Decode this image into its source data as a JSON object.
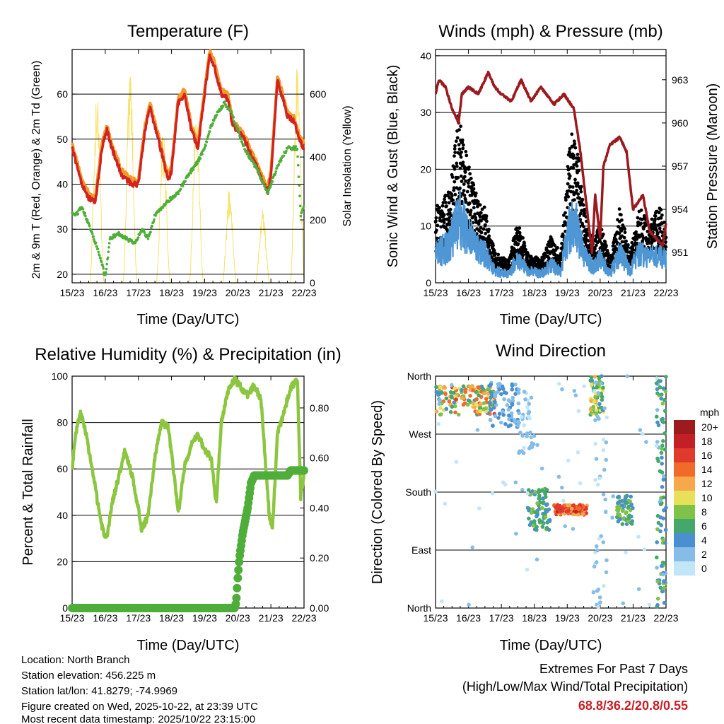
{
  "chart_data": [
    {
      "id": "temp",
      "type": "line",
      "title": "Temperature (F)",
      "xlabel": "Time (Day/UTC)",
      "ylabel": "2m & 9m T (Red, Orange) & 2m Td (Green)",
      "y2label": "Solar Insolation (Yellow)",
      "xticks": [
        "15/23",
        "16/23",
        "17/23",
        "18/23",
        "19/23",
        "20/23",
        "21/23",
        "22/23"
      ],
      "xlim": [
        0,
        7
      ],
      "ylim": [
        18.1,
        69.9
      ],
      "yticks": [
        20,
        30,
        40,
        50,
        60
      ],
      "y2lim": [
        0,
        742
      ],
      "y2ticks": [
        0,
        200,
        400,
        600
      ],
      "t2m": [
        [
          0,
          48
        ],
        [
          0.3,
          40
        ],
        [
          0.5,
          37
        ],
        [
          0.7,
          36
        ],
        [
          0.9,
          48
        ],
        [
          1.05,
          52
        ],
        [
          1.2,
          48
        ],
        [
          1.5,
          42
        ],
        [
          1.8,
          40
        ],
        [
          2.0,
          40
        ],
        [
          2.2,
          52
        ],
        [
          2.35,
          57
        ],
        [
          2.6,
          50
        ],
        [
          2.9,
          41
        ],
        [
          3.0,
          43
        ],
        [
          3.2,
          58
        ],
        [
          3.4,
          60
        ],
        [
          3.6,
          52
        ],
        [
          3.8,
          48
        ],
        [
          3.95,
          57
        ],
        [
          4.15,
          68.8
        ],
        [
          4.3,
          66
        ],
        [
          4.5,
          60
        ],
        [
          4.7,
          59
        ],
        [
          4.85,
          53
        ],
        [
          5.2,
          50
        ],
        [
          5.5,
          45
        ],
        [
          5.9,
          38
        ],
        [
          6.0,
          42
        ],
        [
          6.2,
          63
        ],
        [
          6.4,
          58
        ],
        [
          6.5,
          55
        ],
        [
          6.7,
          54
        ],
        [
          6.85,
          50
        ],
        [
          7.0,
          48
        ]
      ],
      "t9m_offset": 1.0,
      "td2m": [
        [
          0,
          34
        ],
        [
          0.1,
          33
        ],
        [
          0.3,
          35
        ],
        [
          0.5,
          31
        ],
        [
          0.8,
          25
        ],
        [
          1.0,
          19.5
        ],
        [
          1.15,
          28
        ],
        [
          1.4,
          29
        ],
        [
          1.6,
          28
        ],
        [
          1.9,
          27
        ],
        [
          2.1,
          30
        ],
        [
          2.3,
          28
        ],
        [
          2.5,
          33
        ],
        [
          3.0,
          37
        ],
        [
          3.2,
          38
        ],
        [
          3.5,
          42
        ],
        [
          3.8,
          45
        ],
        [
          4.0,
          48
        ],
        [
          4.2,
          53
        ],
        [
          4.4,
          56
        ],
        [
          4.6,
          58
        ],
        [
          4.8,
          56
        ],
        [
          5.0,
          52
        ],
        [
          5.2,
          48
        ],
        [
          5.6,
          43
        ],
        [
          5.9,
          38
        ],
        [
          6.0,
          40
        ],
        [
          6.2,
          44
        ],
        [
          6.5,
          48
        ],
        [
          6.8,
          48
        ],
        [
          6.9,
          33
        ],
        [
          7.0,
          35
        ]
      ],
      "solar_peaks": [
        [
          0.75,
          640
        ],
        [
          1.75,
          680
        ],
        [
          2.75,
          480
        ],
        [
          3.75,
          560
        ],
        [
          4.75,
          300
        ],
        [
          5.75,
          240
        ],
        [
          6.8,
          700
        ]
      ]
    },
    {
      "id": "winds",
      "type": "scatter",
      "title": "Winds (mph) & Pressure (mb)",
      "xlabel": "Time (Day/UTC)",
      "ylabel": "Sonic Wind & Gust (Blue, Black)",
      "y2label": "Station Pressure (Maroon)",
      "xticks": [
        "15/23",
        "16/23",
        "17/23",
        "18/23",
        "19/23",
        "20/23",
        "21/23",
        "22/23"
      ],
      "xlim": [
        0,
        7
      ],
      "ylim": [
        0,
        41.1
      ],
      "yticks": [
        0,
        10,
        20,
        30,
        40
      ],
      "y2lim": [
        948.9,
        965.1
      ],
      "y2ticks": [
        951,
        954,
        957,
        960,
        963
      ],
      "gust_envelope": [
        [
          0,
          10
        ],
        [
          0.4,
          12
        ],
        [
          0.7,
          22
        ],
        [
          0.9,
          18
        ],
        [
          1.2,
          12
        ],
        [
          1.5,
          10
        ],
        [
          1.8,
          4
        ],
        [
          2.2,
          3
        ],
        [
          2.5,
          8
        ],
        [
          2.8,
          4
        ],
        [
          3.2,
          3
        ],
        [
          3.5,
          6
        ],
        [
          3.8,
          4
        ],
        [
          4.1,
          20
        ],
        [
          4.3,
          18
        ],
        [
          4.5,
          10
        ],
        [
          4.8,
          5
        ],
        [
          5.0,
          8
        ],
        [
          5.3,
          3
        ],
        [
          5.6,
          10
        ],
        [
          5.9,
          4
        ],
        [
          6.2,
          10
        ],
        [
          6.5,
          8
        ],
        [
          6.8,
          10
        ],
        [
          7.0,
          8
        ]
      ],
      "sustained_ratio": 0.55,
      "max_wind": 20.8,
      "pressure": [
        [
          0,
          962
        ],
        [
          0.1,
          963
        ],
        [
          0.3,
          962.5
        ],
        [
          0.5,
          961
        ],
        [
          0.7,
          960
        ],
        [
          0.8,
          962
        ],
        [
          1.0,
          962.5
        ],
        [
          1.3,
          962
        ],
        [
          1.6,
          963.5
        ],
        [
          1.8,
          962.5
        ],
        [
          2.0,
          962
        ],
        [
          2.3,
          961.5
        ],
        [
          2.6,
          963
        ],
        [
          2.9,
          961.5
        ],
        [
          3.2,
          962.5
        ],
        [
          3.6,
          961.3
        ],
        [
          3.9,
          962
        ],
        [
          4.2,
          961
        ],
        [
          4.4,
          958
        ],
        [
          4.6,
          954
        ],
        [
          4.75,
          951
        ],
        [
          4.85,
          955
        ],
        [
          5.0,
          952
        ],
        [
          5.1,
          957
        ],
        [
          5.3,
          958.5
        ],
        [
          5.6,
          959
        ],
        [
          5.8,
          958
        ],
        [
          6.0,
          954
        ],
        [
          6.3,
          955
        ],
        [
          6.5,
          952.5
        ],
        [
          6.7,
          952
        ],
        [
          6.9,
          951.5
        ],
        [
          7.0,
          953
        ]
      ]
    },
    {
      "id": "rh",
      "type": "line",
      "title": "Relative Humidity (%) & Precipitation (in)",
      "xlabel": "Time (Day/UTC)",
      "ylabel": "Percent & Total Rainfall",
      "xticks": [
        "15/23",
        "16/23",
        "17/23",
        "18/23",
        "19/23",
        "20/23",
        "21/23",
        "22/23"
      ],
      "xlim": [
        0,
        7
      ],
      "ylim": [
        0,
        100
      ],
      "yticks": [
        0,
        20,
        40,
        60,
        80,
        100
      ],
      "y2lim": [
        0,
        0.927
      ],
      "y2ticks": [
        "0.00",
        "0.20",
        "0.40",
        "0.60",
        "0.80"
      ],
      "rh": [
        [
          0,
          60
        ],
        [
          0.1,
          75
        ],
        [
          0.25,
          84
        ],
        [
          0.4,
          77
        ],
        [
          0.6,
          60
        ],
        [
          0.9,
          35
        ],
        [
          1.05,
          29
        ],
        [
          1.2,
          45
        ],
        [
          1.5,
          62
        ],
        [
          1.6,
          68
        ],
        [
          1.85,
          55
        ],
        [
          2.1,
          34
        ],
        [
          2.3,
          40
        ],
        [
          2.5,
          65
        ],
        [
          2.7,
          80
        ],
        [
          2.9,
          78
        ],
        [
          3.1,
          55
        ],
        [
          3.2,
          40
        ],
        [
          3.4,
          62
        ],
        [
          3.6,
          70
        ],
        [
          3.8,
          75
        ],
        [
          4.0,
          68
        ],
        [
          4.2,
          65
        ],
        [
          4.35,
          45
        ],
        [
          4.5,
          80
        ],
        [
          4.7,
          93
        ],
        [
          4.9,
          99
        ],
        [
          5.1,
          95
        ],
        [
          5.3,
          92
        ],
        [
          5.5,
          96
        ],
        [
          5.7,
          90
        ],
        [
          5.95,
          40
        ],
        [
          6.05,
          35
        ],
        [
          6.2,
          75
        ],
        [
          6.4,
          85
        ],
        [
          6.6,
          95
        ],
        [
          6.8,
          98
        ],
        [
          6.9,
          48
        ],
        [
          7.0,
          58
        ]
      ],
      "precip": [
        [
          0,
          0
        ],
        [
          4.9,
          0
        ],
        [
          4.95,
          0.02
        ],
        [
          5.0,
          0.12
        ],
        [
          5.05,
          0.2
        ],
        [
          5.15,
          0.3
        ],
        [
          5.3,
          0.4
        ],
        [
          5.4,
          0.5
        ],
        [
          5.5,
          0.53
        ],
        [
          6.5,
          0.53
        ],
        [
          6.6,
          0.55
        ],
        [
          7.0,
          0.55
        ]
      ]
    },
    {
      "id": "wdir",
      "type": "scatter",
      "title": "Wind Direction",
      "xlabel": "Time (Day/UTC)",
      "ylabel": "Direction (Colored By Speed)",
      "xticks": [
        "15/23",
        "16/23",
        "17/23",
        "18/23",
        "19/23",
        "20/23",
        "21/23",
        "22/23"
      ],
      "xlim": [
        0,
        7
      ],
      "ylim": [
        0,
        360
      ],
      "yticks": [
        "North",
        "East",
        "South",
        "West",
        "North"
      ],
      "clusters": [
        {
          "t": [
            0,
            1.8
          ],
          "dir": [
            300,
            345
          ],
          "spd": [
            4,
            16
          ],
          "n": 160
        },
        {
          "t": [
            1.6,
            2.6
          ],
          "dir": [
            280,
            350
          ],
          "spd": [
            1,
            5
          ],
          "n": 70
        },
        {
          "t": [
            2.5,
            3.0
          ],
          "dir": [
            240,
            340
          ],
          "spd": [
            0,
            3
          ],
          "n": 40
        },
        {
          "t": [
            2.8,
            3.5
          ],
          "dir": [
            120,
            185
          ],
          "spd": [
            3,
            8
          ],
          "n": 80
        },
        {
          "t": [
            3.6,
            4.6
          ],
          "dir": [
            145,
            160
          ],
          "spd": [
            12,
            18
          ],
          "n": 90
        },
        {
          "t": [
            4.7,
            5.1
          ],
          "dir": [
            300,
            360
          ],
          "spd": [
            4,
            12
          ],
          "n": 60
        },
        {
          "t": [
            4.8,
            5.2
          ],
          "dir": [
            0,
            360
          ],
          "spd": [
            0,
            3
          ],
          "n": 40
        },
        {
          "t": [
            5.5,
            6.0
          ],
          "dir": [
            130,
            175
          ],
          "spd": [
            3,
            9
          ],
          "n": 60
        },
        {
          "t": [
            6.7,
            7.0
          ],
          "dir": [
            0,
            360
          ],
          "spd": [
            2,
            8
          ],
          "n": 90
        },
        {
          "t": [
            0,
            7
          ],
          "dir": [
            0,
            360
          ],
          "spd": [
            0,
            2
          ],
          "n": 60
        }
      ],
      "legend": {
        "title": "mph",
        "labels": [
          "20+",
          "18",
          "16",
          "14",
          "12",
          "10",
          "8",
          "6",
          "4",
          "2",
          "0"
        ],
        "colors": [
          "#9b1b1e",
          "#c21f26",
          "#e03a2b",
          "#f06a2a",
          "#f7a84a",
          "#e8e05a",
          "#7ec24a",
          "#45a86b",
          "#4a8fcf",
          "#86bde8",
          "#c2e5f8"
        ]
      }
    }
  ],
  "info": {
    "location": "Location: North Branch",
    "elevation": "Station elevation: 456.225 m",
    "latlon": "Station lat/lon: 41.8279; -74.9969",
    "created": "Figure created on Wed, 2025-10-22, at 23:39 UTC",
    "recent": "Most recent data timestamp: 2025/10/22 23:15:00"
  },
  "extremes": {
    "title": "Extremes For Past 7 Days",
    "subtitle": "(High/Low/Max Wind/Total Precipitation)",
    "values": "68.8/36.2/20.8/0.55"
  },
  "colors": {
    "red": "#d2231e",
    "orange": "#f39a2b",
    "green": "#4fae3a",
    "yellow": "#f7e26a",
    "black": "#000000",
    "blue": "#4f97d4",
    "maroon": "#9b1a1f",
    "rh": "#8cc63f",
    "precip": "#4fae3a",
    "extreme": "#c8202a"
  }
}
